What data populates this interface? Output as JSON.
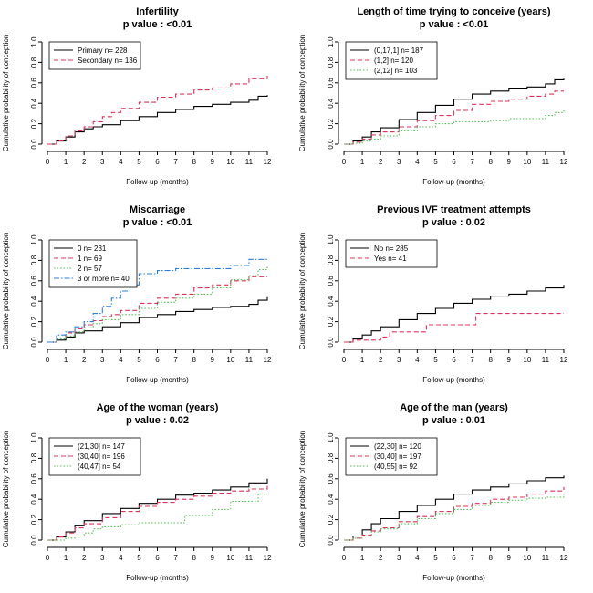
{
  "colors": {
    "black": "#000000",
    "red": "#e0305a",
    "green": "#52c252",
    "blue": "#2a7fe6"
  },
  "chart_data": [
    {
      "type": "line",
      "title": "Infertility",
      "subtitle": "p value : <0.01",
      "xlabel": "Follow-up (months)",
      "ylabel": "Cumulative probability of conception",
      "xlim": [
        0,
        12
      ],
      "ylim": [
        0,
        1.0
      ],
      "xticks": [
        "0",
        "1",
        "2",
        "3",
        "4",
        "5",
        "6",
        "7",
        "8",
        "9",
        "10",
        "11",
        "12"
      ],
      "yticks": [
        "0.0",
        "0.2",
        "0.4",
        "0.6",
        "0.8",
        "1.0"
      ],
      "legend_position": "top-left",
      "series": [
        {
          "name": "Primary n= 228",
          "color": "#000000",
          "dash": "solid",
          "x": [
            0,
            0.5,
            1,
            1.5,
            2,
            2.5,
            3,
            4,
            5,
            6,
            7,
            8,
            9,
            10,
            11,
            11.5,
            12
          ],
          "y": [
            0,
            0.03,
            0.07,
            0.12,
            0.15,
            0.17,
            0.19,
            0.23,
            0.27,
            0.31,
            0.34,
            0.37,
            0.39,
            0.41,
            0.43,
            0.47,
            0.48
          ]
        },
        {
          "name": "Secondary n= 136",
          "color": "#e0305a",
          "dash": "dash",
          "x": [
            0,
            0.5,
            1,
            1.5,
            2,
            2.5,
            3,
            3.5,
            4,
            5,
            6,
            7,
            8,
            9,
            10,
            11,
            12
          ],
          "y": [
            0,
            0.03,
            0.08,
            0.13,
            0.17,
            0.22,
            0.27,
            0.31,
            0.35,
            0.41,
            0.46,
            0.49,
            0.53,
            0.55,
            0.59,
            0.64,
            0.67
          ]
        }
      ]
    },
    {
      "type": "line",
      "title": "Length of time trying to conceive (years)",
      "subtitle": "p value : <0.01",
      "xlabel": "Follow-up (months)",
      "ylabel": "Cumulative probability of conception",
      "xlim": [
        0,
        12
      ],
      "ylim": [
        0,
        1.0
      ],
      "xticks": [
        "0",
        "1",
        "2",
        "3",
        "4",
        "5",
        "6",
        "7",
        "8",
        "9",
        "10",
        "11",
        "12"
      ],
      "yticks": [
        "0.0",
        "0.2",
        "0.4",
        "0.6",
        "0.8",
        "1.0"
      ],
      "legend_position": "top-left",
      "series": [
        {
          "name": "(0,17,1] n= 187",
          "color": "#000000",
          "dash": "solid",
          "x": [
            0,
            0.5,
            1,
            1.5,
            2,
            3,
            4,
            5,
            6,
            7,
            8,
            9,
            10,
            11,
            11.5,
            12
          ],
          "y": [
            0,
            0.03,
            0.07,
            0.12,
            0.16,
            0.24,
            0.31,
            0.38,
            0.44,
            0.49,
            0.52,
            0.54,
            0.56,
            0.59,
            0.63,
            0.64
          ]
        },
        {
          "name": "(1,2] n= 120",
          "color": "#e0305a",
          "dash": "dash",
          "x": [
            0,
            0.5,
            1,
            1.5,
            2,
            3,
            4,
            5,
            6,
            7,
            8,
            9,
            10,
            11,
            11.5,
            12
          ],
          "y": [
            0,
            0.02,
            0.05,
            0.09,
            0.12,
            0.17,
            0.23,
            0.28,
            0.33,
            0.39,
            0.42,
            0.44,
            0.47,
            0.49,
            0.52,
            0.52
          ]
        },
        {
          "name": "(2,12] n= 103",
          "color": "#52c252",
          "dash": "dot",
          "x": [
            0,
            0.5,
            1,
            1.5,
            2,
            3,
            4,
            5,
            6,
            7,
            8,
            9,
            10,
            11,
            11.5,
            12
          ],
          "y": [
            0,
            0.01,
            0.03,
            0.05,
            0.08,
            0.13,
            0.17,
            0.2,
            0.22,
            0.22,
            0.23,
            0.25,
            0.25,
            0.28,
            0.31,
            0.34
          ]
        }
      ]
    },
    {
      "type": "line",
      "title": "Miscarriage",
      "subtitle": "p value : <0.01",
      "xlabel": "Follow-up (months)",
      "ylabel": "Cumulative probability of conception",
      "xlim": [
        0,
        12
      ],
      "ylim": [
        0,
        1.0
      ],
      "xticks": [
        "0",
        "1",
        "2",
        "3",
        "4",
        "5",
        "6",
        "7",
        "8",
        "9",
        "10",
        "11",
        "12"
      ],
      "yticks": [
        "0.0",
        "0.2",
        "0.4",
        "0.6",
        "0.8",
        "1.0"
      ],
      "legend_position": "top-left",
      "series": [
        {
          "name": "0 n= 231",
          "color": "#000000",
          "dash": "solid",
          "x": [
            0,
            0.5,
            1,
            1.5,
            2,
            3,
            4,
            5,
            6,
            7,
            8,
            9,
            10,
            11,
            11.5,
            12
          ],
          "y": [
            0,
            0.02,
            0.05,
            0.09,
            0.11,
            0.15,
            0.19,
            0.24,
            0.27,
            0.3,
            0.32,
            0.34,
            0.35,
            0.37,
            0.41,
            0.44
          ]
        },
        {
          "name": "1 n= 69",
          "color": "#e0305a",
          "dash": "dash",
          "x": [
            0,
            0.5,
            1,
            1.5,
            2,
            2.5,
            3,
            3.5,
            4,
            5,
            6,
            7,
            8,
            9,
            10,
            11,
            12
          ],
          "y": [
            0,
            0.04,
            0.09,
            0.13,
            0.17,
            0.21,
            0.25,
            0.27,
            0.31,
            0.38,
            0.43,
            0.47,
            0.53,
            0.56,
            0.6,
            0.64,
            0.64
          ]
        },
        {
          "name": "2 n= 57",
          "color": "#52c252",
          "dash": "dot",
          "x": [
            0,
            0.5,
            1,
            1.5,
            2,
            2.5,
            3,
            4,
            5,
            6,
            7,
            8,
            9,
            10,
            11,
            11.5,
            12
          ],
          "y": [
            0,
            0.03,
            0.06,
            0.1,
            0.14,
            0.18,
            0.22,
            0.27,
            0.33,
            0.39,
            0.43,
            0.47,
            0.53,
            0.61,
            0.65,
            0.71,
            0.74
          ]
        },
        {
          "name": "3 or more n= 40",
          "color": "#2a7fe6",
          "dash": "dashdot",
          "x": [
            0,
            0.5,
            1,
            1.5,
            2,
            2.5,
            3,
            3.5,
            4,
            4.5,
            5,
            6,
            7,
            8,
            9,
            10,
            11,
            12
          ],
          "y": [
            0,
            0.07,
            0.1,
            0.15,
            0.2,
            0.28,
            0.35,
            0.43,
            0.5,
            0.56,
            0.67,
            0.7,
            0.72,
            0.72,
            0.72,
            0.75,
            0.81,
            0.81
          ]
        }
      ]
    },
    {
      "type": "line",
      "title": "Previous IVF treatment attempts",
      "subtitle": "p value : 0.02",
      "xlabel": "Follow-up (months)",
      "ylabel": "Cumulative probability of conception",
      "xlim": [
        0,
        12
      ],
      "ylim": [
        0,
        1.0
      ],
      "xticks": [
        "0",
        "1",
        "2",
        "3",
        "4",
        "5",
        "6",
        "7",
        "8",
        "9",
        "10",
        "11",
        "12"
      ],
      "yticks": [
        "0.0",
        "0.2",
        "0.4",
        "0.6",
        "0.8",
        "1.0"
      ],
      "legend_position": "top-left",
      "series": [
        {
          "name": "No n= 285",
          "color": "#000000",
          "dash": "solid",
          "x": [
            0,
            0.5,
            1,
            1.5,
            2,
            3,
            4,
            5,
            6,
            7,
            8,
            9,
            10,
            11,
            12
          ],
          "y": [
            0,
            0.03,
            0.07,
            0.11,
            0.15,
            0.22,
            0.28,
            0.33,
            0.38,
            0.42,
            0.45,
            0.47,
            0.5,
            0.53,
            0.56
          ]
        },
        {
          "name": "Yes n= 41",
          "color": "#e0305a",
          "dash": "dash",
          "x": [
            0,
            0.5,
            1,
            2,
            2.5,
            3,
            4,
            4.5,
            5,
            6,
            7,
            7.2,
            8,
            9,
            10,
            11,
            12
          ],
          "y": [
            0,
            0.02,
            0.02,
            0.05,
            0.1,
            0.1,
            0.1,
            0.17,
            0.17,
            0.17,
            0.17,
            0.28,
            0.28,
            0.28,
            0.28,
            0.28,
            0.28
          ]
        }
      ]
    },
    {
      "type": "line",
      "title": "Age of the woman (years)",
      "subtitle": "p value : 0.02",
      "xlabel": "Follow-up (months)",
      "ylabel": "Cumulative probability of conception",
      "xlim": [
        0,
        12
      ],
      "ylim": [
        0,
        1.0
      ],
      "xticks": [
        "0",
        "1",
        "2",
        "3",
        "4",
        "5",
        "6",
        "7",
        "8",
        "9",
        "10",
        "11",
        "12"
      ],
      "yticks": [
        "0.0",
        "0.2",
        "0.4",
        "0.6",
        "0.8",
        "1.0"
      ],
      "legend_position": "top-left",
      "series": [
        {
          "name": "(21,30] n= 147",
          "color": "#000000",
          "dash": "solid",
          "x": [
            0,
            0.5,
            1,
            1.5,
            2,
            3,
            4,
            5,
            6,
            7,
            8,
            9,
            10,
            11,
            12
          ],
          "y": [
            0,
            0.03,
            0.08,
            0.14,
            0.19,
            0.26,
            0.31,
            0.36,
            0.4,
            0.44,
            0.46,
            0.49,
            0.52,
            0.56,
            0.6
          ]
        },
        {
          "name": "(30,40] n= 196",
          "color": "#e0305a",
          "dash": "dash",
          "x": [
            0,
            0.5,
            1,
            1.5,
            2,
            3,
            4,
            5,
            6,
            7,
            8,
            9,
            10,
            11,
            12
          ],
          "y": [
            0,
            0.03,
            0.07,
            0.12,
            0.16,
            0.22,
            0.28,
            0.33,
            0.37,
            0.4,
            0.43,
            0.46,
            0.48,
            0.5,
            0.53
          ]
        },
        {
          "name": "(40,47] n= 54",
          "color": "#52c252",
          "dash": "dot",
          "x": [
            0,
            1,
            1.5,
            2,
            2.5,
            3,
            4,
            5,
            6,
            7,
            7.5,
            8,
            9,
            10,
            11,
            11.5,
            12
          ],
          "y": [
            0,
            0.02,
            0.04,
            0.07,
            0.11,
            0.13,
            0.15,
            0.17,
            0.17,
            0.17,
            0.24,
            0.24,
            0.3,
            0.38,
            0.38,
            0.45,
            0.45
          ]
        }
      ]
    },
    {
      "type": "line",
      "title": "Age of the man (years)",
      "subtitle": "p value : 0.01",
      "xlabel": "Follow-up (months)",
      "ylabel": "Cumulative probability of conception",
      "xlim": [
        0,
        12
      ],
      "ylim": [
        0,
        1.0
      ],
      "xticks": [
        "0",
        "1",
        "2",
        "3",
        "4",
        "5",
        "6",
        "7",
        "8",
        "9",
        "10",
        "11",
        "12"
      ],
      "yticks": [
        "0.0",
        "0.2",
        "0.4",
        "0.6",
        "0.8",
        "1.0"
      ],
      "legend_position": "top-left",
      "series": [
        {
          "name": "(22,30] n= 120",
          "color": "#000000",
          "dash": "solid",
          "x": [
            0,
            0.5,
            1,
            1.5,
            2,
            3,
            4,
            5,
            6,
            7,
            8,
            9,
            10,
            11,
            12
          ],
          "y": [
            0,
            0.04,
            0.1,
            0.16,
            0.21,
            0.28,
            0.34,
            0.4,
            0.45,
            0.49,
            0.52,
            0.55,
            0.58,
            0.61,
            0.63
          ]
        },
        {
          "name": "(30,40] n= 197",
          "color": "#e0305a",
          "dash": "dash",
          "x": [
            0,
            0.5,
            1,
            1.5,
            2,
            3,
            4,
            5,
            6,
            7,
            8,
            9,
            10,
            11,
            12
          ],
          "y": [
            0,
            0.02,
            0.05,
            0.09,
            0.12,
            0.18,
            0.23,
            0.28,
            0.33,
            0.36,
            0.4,
            0.42,
            0.45,
            0.48,
            0.52
          ]
        },
        {
          "name": "(40,55] n= 92",
          "color": "#52c252",
          "dash": "dot",
          "x": [
            0,
            0.5,
            1,
            1.5,
            2,
            3,
            4,
            5,
            6,
            7,
            8,
            9,
            10,
            11,
            12
          ],
          "y": [
            0,
            0.02,
            0.04,
            0.08,
            0.11,
            0.16,
            0.21,
            0.26,
            0.3,
            0.34,
            0.37,
            0.39,
            0.41,
            0.42,
            0.45
          ]
        }
      ]
    }
  ]
}
